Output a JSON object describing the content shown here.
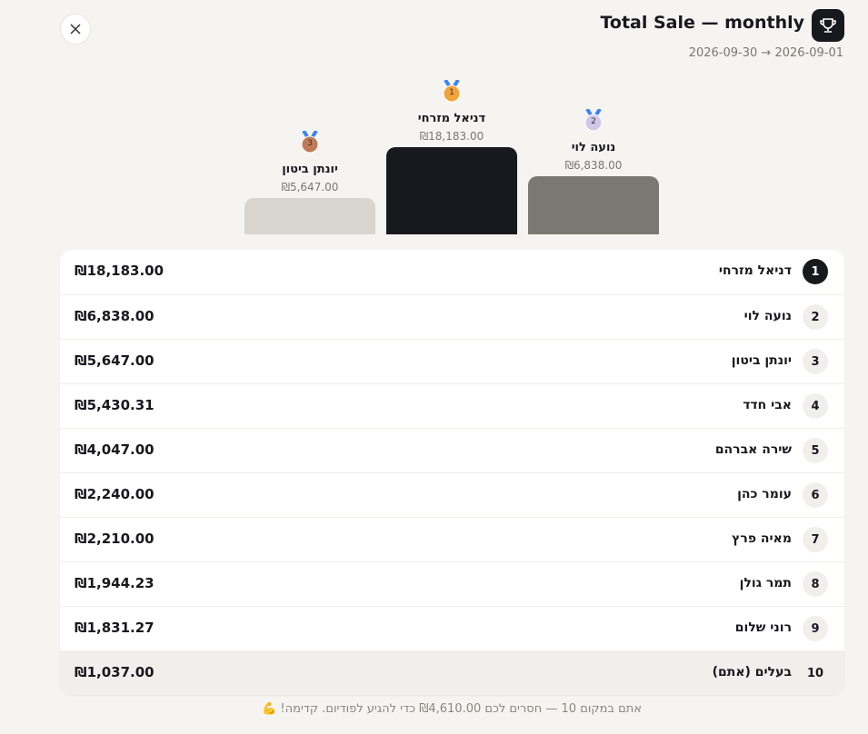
{
  "header": {
    "title": "Total Sale — monthly",
    "date_range": "2026-09-01 → 2026-09-30"
  },
  "rows": [
    {
      "rank": "1",
      "name": "דניאל מזרחי",
      "amount": "₪18,183.00"
    },
    {
      "rank": "2",
      "name": "נועה לוי",
      "amount": "₪6,838.00"
    },
    {
      "rank": "3",
      "name": "יונתן ביטון",
      "amount": "₪5,647.00"
    },
    {
      "rank": "4",
      "name": "אבי חדד",
      "amount": "₪5,430.31"
    },
    {
      "rank": "5",
      "name": "שירה אברהם",
      "amount": "₪4,047.00"
    },
    {
      "rank": "6",
      "name": "עומר כהן",
      "amount": "₪2,240.00"
    },
    {
      "rank": "7",
      "name": "מאיה פרץ",
      "amount": "₪2,210.00"
    },
    {
      "rank": "8",
      "name": "תמר גולן",
      "amount": "₪1,944.23"
    },
    {
      "rank": "9",
      "name": "רוני שלום",
      "amount": "₪1,831.27"
    },
    {
      "rank": "10",
      "name": "בעלים (אתם)",
      "amount": "₪1,037.00"
    }
  ],
  "footer": "אתם במקום 10 — חסרים לכם ₪4,610.00 כדי להגיע לפודיום. קדימה! 💪"
}
